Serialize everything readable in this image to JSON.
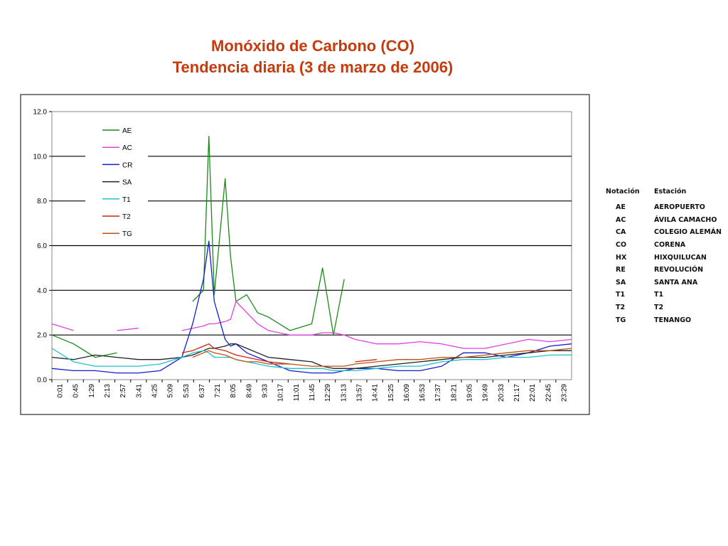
{
  "title": {
    "line1": "Monóxido de Carbono (CO)",
    "line2": "Tendencia diaria (3 de marzo de 2006)"
  },
  "chart_data": {
    "type": "line",
    "ylim": [
      0,
      12
    ],
    "y_ticks": [
      "0.0",
      "2.0",
      "4.0",
      "6.0",
      "8.0",
      "10.0",
      "12.0"
    ],
    "x_ticks": [
      "0:01",
      "0:45",
      "1:29",
      "2:13",
      "2:57",
      "3:41",
      "4:25",
      "5:09",
      "5:53",
      "6:37",
      "7:21",
      "8:05",
      "8:49",
      "9:33",
      "10:17",
      "11:01",
      "11:45",
      "12:29",
      "13:13",
      "13:57",
      "14:41",
      "15:25",
      "16:09",
      "16:53",
      "17:37",
      "18:21",
      "19:05",
      "19:49",
      "20:33",
      "21:17",
      "22:01",
      "22:45",
      "23:29"
    ],
    "grid": true,
    "legend_position": "top-left inside",
    "x_hours": [
      0,
      1,
      2,
      3,
      4,
      5,
      6,
      6.5,
      7,
      7.25,
      7.5,
      8,
      8.25,
      8.5,
      9,
      9.5,
      10,
      11,
      12,
      12.5,
      13,
      13.5,
      14,
      15,
      16,
      17,
      18,
      19,
      20,
      21,
      22,
      23,
      24
    ],
    "series": [
      {
        "name": "AE",
        "color": "#1a8a1a",
        "values": [
          2.0,
          1.6,
          1.0,
          1.2,
          null,
          null,
          null,
          3.5,
          4.0,
          10.9,
          3.8,
          9.0,
          5.5,
          3.5,
          3.8,
          3.0,
          2.8,
          2.2,
          2.5,
          5.0,
          2.0,
          4.5,
          null,
          null,
          null,
          null,
          null,
          null,
          null,
          null,
          null,
          null,
          null
        ]
      },
      {
        "name": "AC",
        "color": "#e040e0",
        "values": [
          2.5,
          2.2,
          null,
          2.2,
          2.3,
          null,
          2.2,
          2.3,
          2.4,
          2.5,
          2.5,
          2.6,
          2.7,
          3.5,
          3.0,
          2.5,
          2.2,
          2.0,
          2.0,
          2.1,
          2.1,
          2.0,
          1.8,
          1.6,
          1.6,
          1.7,
          1.6,
          1.4,
          1.4,
          1.6,
          1.8,
          1.7,
          1.8
        ]
      },
      {
        "name": "CR",
        "color": "#1020d0",
        "values": [
          0.5,
          0.4,
          0.4,
          0.3,
          0.3,
          0.4,
          1.0,
          2.5,
          4.5,
          6.2,
          3.5,
          1.8,
          1.5,
          1.6,
          1.2,
          1.0,
          0.8,
          0.4,
          0.3,
          0.3,
          0.3,
          0.4,
          0.5,
          0.5,
          0.4,
          0.4,
          0.6,
          1.2,
          1.2,
          1.0,
          1.2,
          1.5,
          1.6
        ]
      },
      {
        "name": "SA",
        "color": "#222222",
        "values": [
          1.0,
          0.9,
          1.1,
          1.0,
          0.9,
          0.9,
          1.0,
          1.1,
          1.3,
          1.4,
          1.4,
          1.5,
          1.6,
          1.6,
          1.4,
          1.2,
          1.0,
          0.9,
          0.8,
          0.6,
          0.5,
          0.5,
          0.5,
          0.6,
          0.7,
          0.8,
          0.9,
          1.0,
          1.0,
          1.1,
          1.2,
          1.3,
          1.3
        ]
      },
      {
        "name": "T1",
        "color": "#20c0d0",
        "values": [
          1.4,
          0.8,
          0.6,
          0.6,
          0.6,
          0.7,
          1.0,
          1.2,
          1.3,
          1.2,
          1.0,
          1.0,
          1.0,
          0.9,
          0.8,
          0.7,
          0.6,
          0.5,
          0.5,
          0.5,
          0.4,
          0.4,
          0.4,
          0.5,
          0.6,
          0.6,
          0.8,
          0.9,
          0.9,
          1.0,
          1.0,
          1.1,
          1.1
        ]
      },
      {
        "name": "T2",
        "color": "#d02010",
        "values": [
          null,
          null,
          null,
          null,
          null,
          null,
          1.2,
          1.3,
          1.5,
          1.6,
          1.4,
          1.3,
          1.2,
          1.1,
          1.0,
          0.9,
          0.8,
          0.7,
          null,
          null,
          null,
          null,
          0.8,
          0.9,
          null,
          null,
          null,
          null,
          null,
          null,
          null,
          null,
          null
        ]
      },
      {
        "name": "TG",
        "color": "#c05010",
        "values": [
          null,
          null,
          null,
          null,
          null,
          null,
          null,
          1.0,
          1.2,
          1.3,
          1.2,
          1.1,
          1.0,
          0.9,
          0.8,
          0.8,
          0.7,
          0.7,
          0.6,
          0.6,
          0.6,
          0.6,
          0.7,
          0.8,
          0.9,
          0.9,
          1.0,
          1.0,
          1.1,
          1.2,
          1.3,
          1.3,
          1.4
        ]
      }
    ]
  },
  "station_table": {
    "headers": [
      "Notación",
      "Estación"
    ],
    "rows": [
      [
        "AE",
        "AEROPUERTO"
      ],
      [
        "AC",
        "ÁVILA CAMACHO"
      ],
      [
        "CA",
        "COLEGIO ALEMÁN"
      ],
      [
        "CO",
        "CORENA"
      ],
      [
        "HX",
        "HIXQUILUCAN"
      ],
      [
        "RE",
        "REVOLUCIÓN"
      ],
      [
        "SA",
        "SANTA ANA"
      ],
      [
        "T1",
        "T1"
      ],
      [
        "T2",
        "T2"
      ],
      [
        "TG",
        "TENANGO"
      ]
    ]
  }
}
